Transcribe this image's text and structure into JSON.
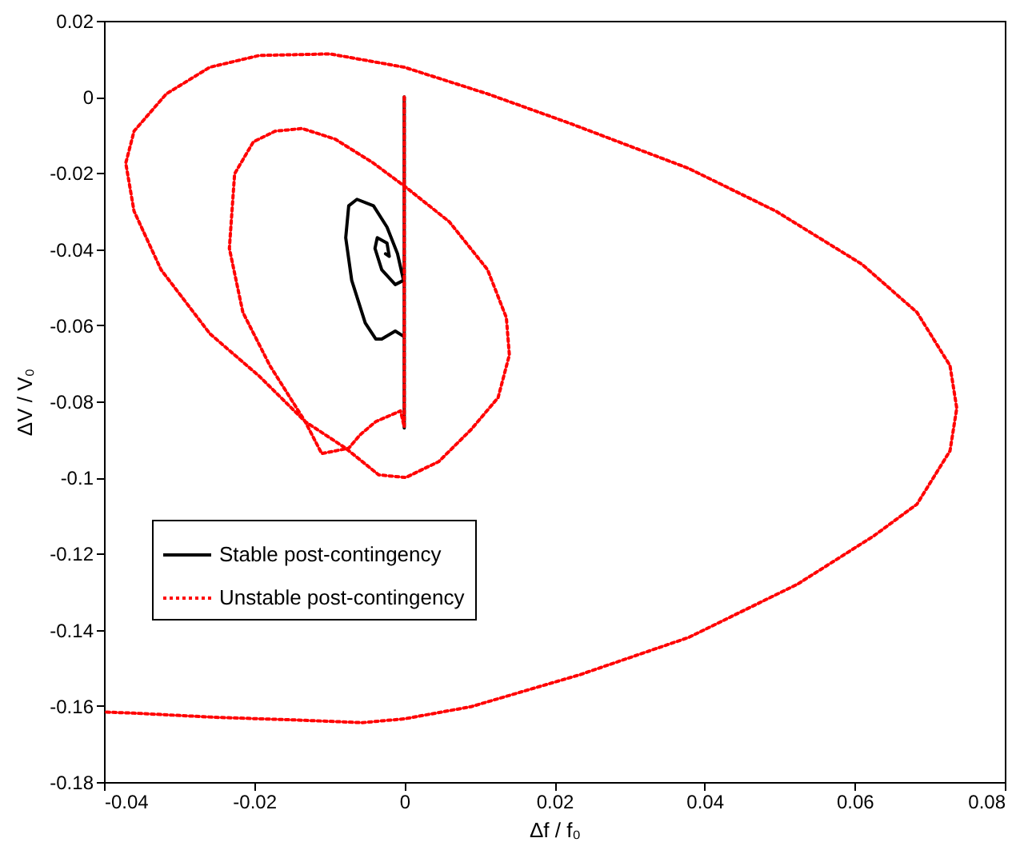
{
  "chart_data": {
    "type": "line",
    "xlabel": "Δf / f₀",
    "ylabel": "ΔV / V₀",
    "xlim": [
      -0.04,
      0.08
    ],
    "ylim": [
      -0.18,
      0.02
    ],
    "xticks": [
      -0.04,
      -0.02,
      0,
      0.02,
      0.04,
      0.06,
      0.08
    ],
    "yticks": [
      -0.18,
      -0.16,
      -0.14,
      -0.12,
      -0.1,
      -0.08,
      -0.06,
      -0.04,
      -0.02,
      0,
      0.02
    ],
    "legend": "left",
    "series": [
      {
        "name": "Stable post-contingency",
        "color": "#000000",
        "line_style": "solid",
        "x": [
          0,
          0,
          0,
          -0.0012,
          -0.003,
          -0.0038,
          -0.0052,
          -0.007,
          -0.0078,
          -0.0074,
          -0.0063,
          -0.0041,
          -0.0023,
          -0.0009,
          -0.0001,
          -0.0012,
          -0.003,
          -0.0039,
          -0.0036,
          -0.0023,
          -0.002,
          -0.0025
        ],
        "values": [
          0,
          -0.087,
          -0.063,
          -0.0615,
          -0.0636,
          -0.0636,
          -0.0594,
          -0.0482,
          -0.037,
          -0.0286,
          -0.0269,
          -0.0286,
          -0.0342,
          -0.0412,
          -0.0482,
          -0.0493,
          -0.0454,
          -0.0398,
          -0.037,
          -0.0384,
          -0.0419,
          -0.0412
        ]
      },
      {
        "name": "Unstable post-contingency",
        "color": "#ff0000",
        "line_style": "dotted",
        "x": [
          0,
          0,
          -0.0005,
          -0.0038,
          -0.0059,
          -0.0074,
          -0.011,
          -0.0132,
          -0.0179,
          -0.0215,
          -0.0233,
          -0.0226,
          -0.0201,
          -0.0172,
          -0.0136,
          -0.0092,
          -0.0041,
          0.0002,
          0.006,
          0.0111,
          0.0136,
          0.014,
          0.0125,
          0.0089,
          0.0046,
          0.0002,
          -0.0034,
          -0.0078,
          -0.0132,
          -0.0193,
          -0.0259,
          -0.0324,
          -0.036,
          -0.0371,
          -0.036,
          -0.0317,
          -0.0259,
          -0.0193,
          -0.0099,
          0,
          0.0111,
          0.022,
          0.0379,
          0.0495,
          0.061,
          0.0683,
          0.0727,
          0.0736,
          0.0727,
          0.0683,
          0.0625,
          0.0524,
          0.0379,
          0.0234,
          0.0089,
          0,
          -0.0056,
          -0.0143,
          -0.0251,
          -0.036,
          -0.04
        ],
        "values": [
          0,
          -0.0867,
          -0.0825,
          -0.0853,
          -0.0888,
          -0.0923,
          -0.0937,
          -0.0853,
          -0.0706,
          -0.0566,
          -0.0398,
          -0.0202,
          -0.0118,
          -0.009,
          -0.0083,
          -0.0111,
          -0.0174,
          -0.0237,
          -0.0328,
          -0.0454,
          -0.058,
          -0.0678,
          -0.079,
          -0.0874,
          -0.0958,
          -0.1,
          -0.0993,
          -0.0923,
          -0.0853,
          -0.0734,
          -0.0622,
          -0.0454,
          -0.03,
          -0.0174,
          -0.009,
          0.0008,
          0.0078,
          0.0109,
          0.0113,
          0.0078,
          0.0008,
          -0.0069,
          -0.0188,
          -0.03,
          -0.044,
          -0.0566,
          -0.0706,
          -0.0818,
          -0.093,
          -0.107,
          -0.1154,
          -0.128,
          -0.142,
          -0.1518,
          -0.1602,
          -0.1634,
          -0.1644,
          -0.1637,
          -0.163,
          -0.1619,
          -0.1616
        ]
      }
    ]
  }
}
